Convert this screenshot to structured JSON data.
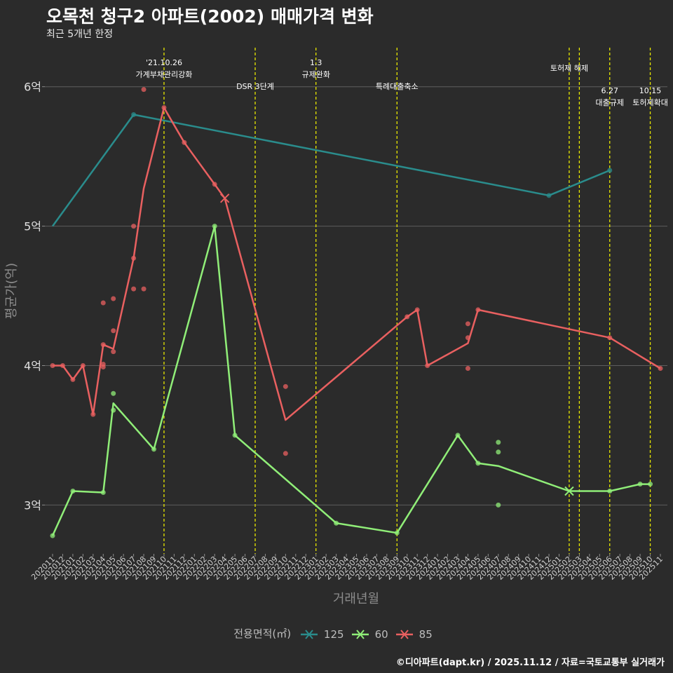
{
  "title": "오목천 청구2 아파트(2002) 매매가격 변화",
  "subtitle": "최근 5개년 한정",
  "caption": "©디아파트(dapt.kr) / 2025.11.12 / 자료=국토교통부 실거래가",
  "chart_data": {
    "type": "line",
    "title": "오목천 청구2 아파트(2002) 매매가격 변화",
    "subtitle": "최근 5개년 한정",
    "xlabel": "거래년월",
    "ylabel": "평균가(억)",
    "ylim": [
      2.65,
      6.28
    ],
    "y_ticks": [
      3,
      4,
      5,
      6
    ],
    "y_tick_labels": [
      "3억",
      "4억",
      "5억",
      "6억"
    ],
    "x_months": [
      "202011",
      "202012",
      "202101",
      "202102",
      "202103",
      "202104",
      "202105",
      "202106",
      "202107",
      "202108",
      "202109",
      "202110",
      "202111",
      "202112",
      "202201",
      "202202",
      "202203",
      "202204",
      "202205",
      "202206",
      "202207",
      "202208",
      "202209",
      "202210",
      "202211",
      "202212",
      "202301",
      "202302",
      "202303",
      "202304",
      "202305",
      "202306",
      "202307",
      "202308",
      "202309",
      "202310",
      "202311",
      "202312",
      "202401",
      "202402",
      "202403",
      "202404",
      "202405",
      "202406",
      "202407",
      "202408",
      "202409",
      "202410",
      "202411",
      "202412",
      "202501",
      "202502",
      "202503",
      "202504",
      "202505",
      "202506",
      "202507",
      "202508",
      "202509",
      "202510",
      "202511"
    ],
    "legend_title": "전용면적(㎡)",
    "legend": [
      "125",
      "60",
      "85"
    ],
    "colors": {
      "125": "#2a8c8c",
      "60": "#90ee78",
      "85": "#e96060",
      "event": "#e8e800"
    },
    "series": [
      {
        "name": "125",
        "color": "#2a8c8c",
        "line": [
          [
            "202011",
            5.0
          ],
          [
            "202107",
            5.8
          ],
          [
            "202412",
            5.22
          ],
          [
            "202506",
            5.4
          ]
        ],
        "points": [
          [
            "202107",
            5.8
          ],
          [
            "202412",
            5.22
          ],
          [
            "202506",
            5.4
          ]
        ],
        "cross": []
      },
      {
        "name": "60",
        "color": "#90ee78",
        "line": [
          [
            "202011",
            2.78
          ],
          [
            "202101",
            3.1
          ],
          [
            "202104",
            3.09
          ],
          [
            "202105",
            3.73
          ],
          [
            "202109",
            3.4
          ],
          [
            "202203",
            5.0
          ],
          [
            "202205",
            3.5
          ],
          [
            "202303",
            2.87
          ],
          [
            "202309",
            2.8
          ],
          [
            "202403",
            3.5
          ],
          [
            "202405",
            3.3
          ],
          [
            "202407",
            3.28
          ],
          [
            "202502",
            3.1
          ],
          [
            "202506",
            3.1
          ],
          [
            "202509",
            3.15
          ],
          [
            "202510",
            3.15
          ]
        ],
        "points": [
          [
            "202011",
            2.78
          ],
          [
            "202101",
            3.1
          ],
          [
            "202104",
            3.09
          ],
          [
            "202105",
            3.8
          ],
          [
            "202105",
            3.68
          ],
          [
            "202109",
            3.4
          ],
          [
            "202203",
            5.0
          ],
          [
            "202205",
            3.5
          ],
          [
            "202303",
            2.87
          ],
          [
            "202309",
            2.8
          ],
          [
            "202403",
            3.5
          ],
          [
            "202405",
            3.3
          ],
          [
            "202407",
            3.45
          ],
          [
            "202407",
            3.38
          ],
          [
            "202407",
            3.0
          ],
          [
            "202506",
            3.1
          ],
          [
            "202509",
            3.15
          ],
          [
            "202510",
            3.15
          ]
        ],
        "cross": [
          [
            "202502",
            3.1
          ]
        ]
      },
      {
        "name": "85",
        "color": "#e96060",
        "line": [
          [
            "202011",
            4.0
          ],
          [
            "202012",
            4.0
          ],
          [
            "202101",
            3.9
          ],
          [
            "202102",
            4.0
          ],
          [
            "202103",
            3.65
          ],
          [
            "202104",
            4.15
          ],
          [
            "202105",
            4.12
          ],
          [
            "202107",
            4.77
          ],
          [
            "202108",
            5.27
          ],
          [
            "202110",
            5.85
          ],
          [
            "202112",
            5.6
          ],
          [
            "202203",
            5.3
          ],
          [
            "202204",
            5.2
          ],
          [
            "202210",
            3.61
          ],
          [
            "202310",
            4.35
          ],
          [
            "202311",
            4.4
          ],
          [
            "202312",
            4.0
          ],
          [
            "202404",
            4.16
          ],
          [
            "202405",
            4.4
          ],
          [
            "202506",
            4.2
          ],
          [
            "202511",
            3.98
          ]
        ],
        "points": [
          [
            "202011",
            4.0
          ],
          [
            "202012",
            4.0
          ],
          [
            "202101",
            3.9
          ],
          [
            "202102",
            4.0
          ],
          [
            "202103",
            3.65
          ],
          [
            "202104",
            4.45
          ],
          [
            "202104",
            4.15
          ],
          [
            "202104",
            4.01
          ],
          [
            "202104",
            3.99
          ],
          [
            "202105",
            4.48
          ],
          [
            "202105",
            4.25
          ],
          [
            "202105",
            4.1
          ],
          [
            "202107",
            5.0
          ],
          [
            "202107",
            4.77
          ],
          [
            "202107",
            4.55
          ],
          [
            "202108",
            5.98
          ],
          [
            "202108",
            4.55
          ],
          [
            "202110",
            5.85
          ],
          [
            "202112",
            5.6
          ],
          [
            "202203",
            5.3
          ],
          [
            "202210",
            3.85
          ],
          [
            "202210",
            3.37
          ],
          [
            "202310",
            4.35
          ],
          [
            "202311",
            4.4
          ],
          [
            "202312",
            4.0
          ],
          [
            "202404",
            4.3
          ],
          [
            "202404",
            4.2
          ],
          [
            "202404",
            3.98
          ],
          [
            "202405",
            4.4
          ],
          [
            "202506",
            4.2
          ],
          [
            "202511",
            3.98
          ]
        ],
        "cross": [
          [
            "202204",
            5.2
          ]
        ]
      }
    ],
    "events": [
      {
        "month": "202110",
        "lines": [
          "'21.10.26",
          "가계부채관리강화"
        ],
        "row": 0
      },
      {
        "month": "202207",
        "lines": [
          "DSR 3단계"
        ],
        "row": 2
      },
      {
        "month": "202301",
        "lines": [
          "1.3",
          "규제완화"
        ],
        "row": 0
      },
      {
        "month": "202309",
        "lines": [
          "특례대출축소"
        ],
        "row": 2
      },
      {
        "month": "202502",
        "lines": [
          "토허제 해제"
        ],
        "row": 1
      },
      {
        "month": "202503",
        "lines": [],
        "row": 1
      },
      {
        "month": "202506",
        "lines": [
          "6.27",
          "대출규제"
        ],
        "row": 3
      },
      {
        "month": "202510",
        "lines": [
          "10.15",
          "토허제확대"
        ],
        "row": 3
      }
    ]
  }
}
